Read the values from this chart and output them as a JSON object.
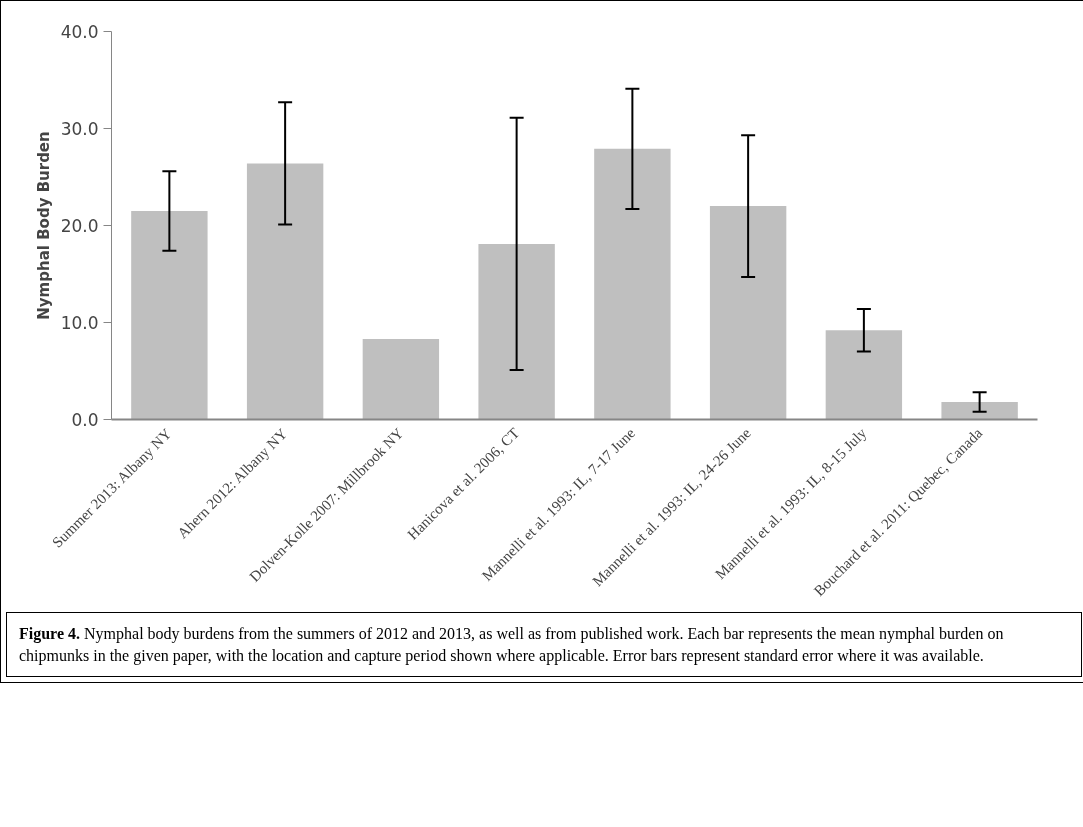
{
  "chart_data": {
    "type": "bar",
    "ylabel": "Nymphal Body Burden",
    "categories": [
      "Summer 2013: Albany NY",
      "Ahern 2012: Albany NY",
      "Dolven-Kolle 2007: Millbrook NY",
      "Hanicova et al. 2006, CT",
      "Mannelli et al. 1993: IL, 7-17 June",
      "Mannelli et al. 1993: IL, 24-26 June",
      "Mannelli et al. 1993: IL, 8-15 July",
      "Bouchard et al. 2011: Quebec, Canada"
    ],
    "values": [
      21.5,
      26.4,
      8.3,
      18.1,
      27.9,
      22.0,
      9.2,
      1.8
    ],
    "errors": [
      4.1,
      6.3,
      null,
      13.0,
      6.2,
      7.3,
      2.2,
      1.0
    ],
    "color": "#bfbfbf",
    "ylim": [
      0,
      40
    ],
    "yticks": [
      {
        "value": 0,
        "label": "0.0"
      },
      {
        "value": 10,
        "label": "10.0"
      },
      {
        "value": 20,
        "label": "20.0"
      },
      {
        "value": 30,
        "label": "30.0"
      },
      {
        "value": 40,
        "label": "40.0"
      }
    ],
    "grid": false,
    "annotations": [
      "Figure 4.",
      "Nymphal body burdens from the summers of 2012 and 2013, as well as from published work. Each bar represents the mean nymphal burden on chipmunks in the given paper, with the location and capture period shown where applicable. Error bars represent standard error where it was available."
    ]
  }
}
